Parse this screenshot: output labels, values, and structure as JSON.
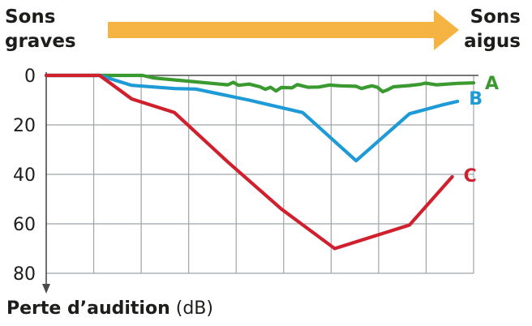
{
  "header": {
    "low_line1": "Sons",
    "low_line2": "graves",
    "high_line1": "Sons",
    "high_line2": "aigus"
  },
  "colors": {
    "arrow": "#f5b342",
    "A": "#3a9a2f",
    "B": "#1e9ad6",
    "C": "#d0202e",
    "grid": "#9fa4a8",
    "axis": "#4a4a4a"
  },
  "chart_data": {
    "type": "line",
    "ylabel": {
      "bold": "Perte d’audition",
      "unit": "(dB)"
    },
    "ylim": [
      0,
      80
    ],
    "y_inverted": true,
    "yticks": [
      0,
      20,
      40,
      60,
      80
    ],
    "x": [
      0,
      1,
      2,
      3,
      4,
      5,
      6,
      7,
      8,
      9,
      10,
      11,
      12,
      13,
      14,
      15,
      16,
      17,
      18,
      19,
      20,
      21,
      22,
      23,
      24,
      25,
      26,
      27,
      28,
      29,
      30,
      31,
      32,
      33,
      34,
      35,
      36,
      37,
      38,
      39,
      40,
      41,
      42,
      43,
      44,
      45,
      46,
      47,
      48,
      49,
      50,
      51,
      52,
      53,
      54,
      55,
      56,
      57,
      58,
      59,
      60,
      61,
      62,
      63,
      64,
      65,
      66,
      67,
      68,
      69,
      70,
      71,
      72,
      73,
      74,
      75,
      76,
      77,
      78,
      79,
      80
    ],
    "xlim": [
      0,
      80
    ],
    "grid": true,
    "series": [
      {
        "name": "A",
        "color": "#3a9a2f",
        "points": [
          [
            0,
            0
          ],
          [
            10,
            0
          ],
          [
            18,
            0
          ],
          [
            20,
            1
          ],
          [
            22,
            1.4
          ],
          [
            25,
            2
          ],
          [
            30,
            3
          ],
          [
            34,
            3.8
          ],
          [
            35,
            2.8
          ],
          [
            36,
            4
          ],
          [
            38,
            3.5
          ],
          [
            40,
            4.6
          ],
          [
            41,
            5.6
          ],
          [
            42,
            4.8
          ],
          [
            43,
            6.3
          ],
          [
            44,
            4.9
          ],
          [
            46,
            5
          ],
          [
            47,
            3.7
          ],
          [
            49,
            4.8
          ],
          [
            51,
            4.7
          ],
          [
            53,
            3.9
          ],
          [
            55,
            4.2
          ],
          [
            58,
            4.4
          ],
          [
            59,
            5.3
          ],
          [
            60,
            4.7
          ],
          [
            61,
            4.2
          ],
          [
            62,
            4.8
          ],
          [
            63,
            6.6
          ],
          [
            64,
            5.7
          ],
          [
            65,
            4.6
          ],
          [
            68,
            4.1
          ],
          [
            70,
            3.6
          ],
          [
            71,
            3.1
          ],
          [
            73,
            3.8
          ],
          [
            77,
            3.2
          ],
          [
            80,
            3
          ]
        ]
      },
      {
        "name": "B",
        "color": "#1e9ad6",
        "points": [
          [
            0,
            0
          ],
          [
            10,
            0
          ],
          [
            16,
            4
          ],
          [
            24,
            5.3
          ],
          [
            28,
            5.5
          ],
          [
            38,
            10
          ],
          [
            48,
            15
          ],
          [
            58,
            34.5
          ],
          [
            68,
            15.5
          ],
          [
            74,
            12
          ],
          [
            77,
            10.5
          ]
        ]
      },
      {
        "name": "C",
        "color": "#d0202e",
        "points": [
          [
            0,
            0
          ],
          [
            10,
            0
          ],
          [
            16,
            9.5
          ],
          [
            24,
            15
          ],
          [
            34,
            35
          ],
          [
            44,
            54
          ],
          [
            54,
            70
          ],
          [
            68,
            60.5
          ],
          [
            76,
            41
          ]
        ]
      }
    ]
  }
}
